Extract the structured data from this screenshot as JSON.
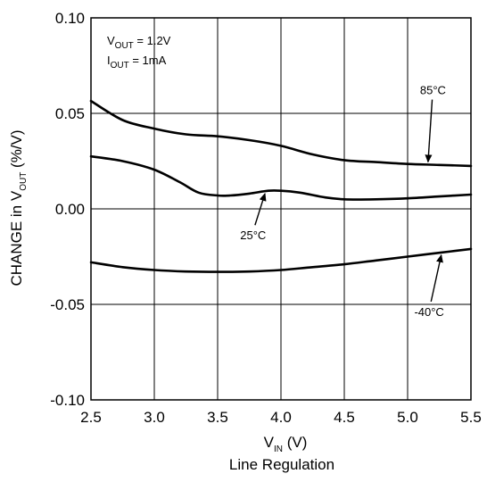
{
  "chart_data": {
    "type": "line",
    "title": "",
    "caption": "Line Regulation",
    "xlabel": {
      "main": "V",
      "sub": "IN",
      "tail": " (V)"
    },
    "ylabel": {
      "main": "CHANGE in V",
      "sub": "OUT",
      "tail": " (%/V)"
    },
    "xlim": [
      2.5,
      5.5
    ],
    "ylim": [
      -0.1,
      0.1
    ],
    "xticks": [
      "2.5",
      "3.0",
      "3.5",
      "4.0",
      "4.5",
      "5.0",
      "5.5"
    ],
    "xtick_values": [
      2.5,
      3.0,
      3.5,
      4.0,
      4.5,
      5.0,
      5.5
    ],
    "yticks": [
      "0.10",
      "0.05",
      "0.00",
      "-0.05",
      "-0.10"
    ],
    "ytick_values": [
      0.1,
      0.05,
      0.0,
      -0.05,
      -0.1
    ],
    "grid": true,
    "conditions": [
      {
        "main": "V",
        "sub": "OUT",
        "tail": " = 1.2V"
      },
      {
        "main": "I",
        "sub": "OUT",
        "tail": " = 1mA"
      }
    ],
    "series": [
      {
        "name": "85°C",
        "x": [
          2.5,
          2.75,
          3.0,
          3.25,
          3.5,
          3.75,
          4.0,
          4.25,
          4.5,
          4.75,
          5.0,
          5.25,
          5.5
        ],
        "y": [
          0.0565,
          0.0465,
          0.042,
          0.039,
          0.038,
          0.036,
          0.033,
          0.0285,
          0.0255,
          0.0245,
          0.0235,
          0.023,
          0.0225
        ]
      },
      {
        "name": "25°C",
        "x": [
          2.5,
          2.75,
          3.0,
          3.2,
          3.35,
          3.5,
          3.6,
          3.75,
          3.9,
          4.0,
          4.15,
          4.35,
          4.5,
          4.75,
          5.0,
          5.25,
          5.5
        ],
        "y": [
          0.0275,
          0.025,
          0.0205,
          0.014,
          0.0085,
          0.007,
          0.007,
          0.008,
          0.0095,
          0.0095,
          0.0085,
          0.006,
          0.005,
          0.005,
          0.0055,
          0.0065,
          0.0075
        ]
      },
      {
        "name": "-40°C",
        "x": [
          2.5,
          2.75,
          3.0,
          3.25,
          3.5,
          3.75,
          4.0,
          4.25,
          4.5,
          4.75,
          5.0,
          5.25,
          5.5
        ],
        "y": [
          -0.028,
          -0.0305,
          -0.032,
          -0.0328,
          -0.033,
          -0.0328,
          -0.032,
          -0.0305,
          -0.029,
          -0.027,
          -0.025,
          -0.023,
          -0.021
        ]
      }
    ],
    "annotations": [
      {
        "text": "85°C",
        "series": 0,
        "target_x": 5.16,
        "label_x": 5.2,
        "label_y": 0.06
      },
      {
        "text": "25°C",
        "series": 1,
        "target_x": 3.88,
        "label_x": 3.78,
        "label_y": -0.016
      },
      {
        "text": "-40°C",
        "series": 2,
        "target_x": 5.27,
        "label_x": 5.17,
        "label_y": -0.056
      }
    ]
  }
}
